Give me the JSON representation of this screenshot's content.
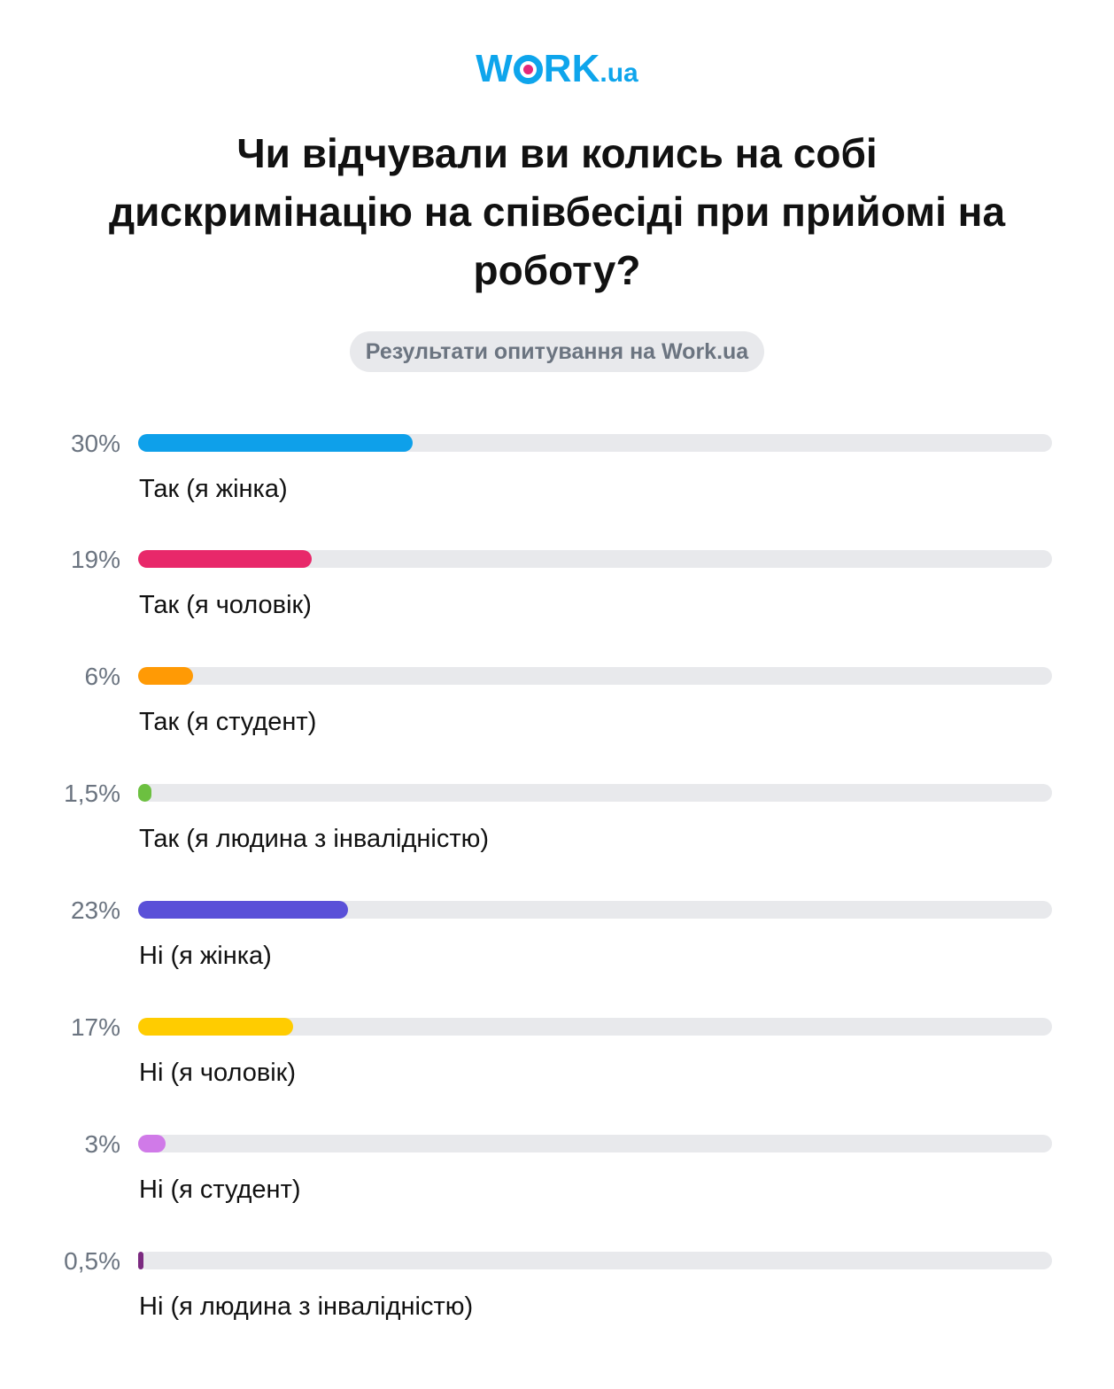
{
  "logo": {
    "main_w": "W",
    "main_rk": "RK",
    "suffix": ".ua"
  },
  "title": "Чи відчували ви колись на собі дискримінацію на співбесіді при прийомі на роботу?",
  "badge": "Результати опитування на Work.ua",
  "colors": {
    "brand": "#0ea5ec",
    "accent": "#e4287a",
    "track": "#e8e9ec"
  },
  "chart_data": {
    "type": "bar",
    "orientation": "horizontal",
    "title": "Чи відчували ви колись на собі дискримінацію на співбесіді при прийомі на роботу?",
    "subtitle": "Результати опитування на Work.ua",
    "categories": [
      "Так (я жінка)",
      "Так (я чоловік)",
      "Так (я студент)",
      "Так (я людина з інвалідністю)",
      "Ні (я жінка)",
      "Ні (я чоловік)",
      "Ні (я студент)",
      "Ні (я людина з інвалідністю)"
    ],
    "values": [
      30,
      19,
      6,
      1.5,
      23,
      17,
      3,
      0.5
    ],
    "value_labels": [
      "30%",
      "19%",
      "6%",
      "1,5%",
      "23%",
      "17%",
      "3%",
      "0,5%"
    ],
    "colors": [
      "#0ea0ea",
      "#e8286a",
      "#ff9a05",
      "#6cc040",
      "#5a50d8",
      "#ffcc00",
      "#d07ae8",
      "#7b2a80"
    ],
    "xlim": [
      0,
      100
    ],
    "xlabel": "",
    "ylabel": "",
    "grid": false,
    "legend": "none"
  },
  "rows": [
    {
      "pct": "30%",
      "label": "Так (я жінка)"
    },
    {
      "pct": "19%",
      "label": "Так (я чоловік)"
    },
    {
      "pct": "6%",
      "label": "Так (я студент)"
    },
    {
      "pct": "1,5%",
      "label": "Так (я людина з інвалідністю)"
    },
    {
      "pct": "23%",
      "label": "Ні (я жінка)"
    },
    {
      "pct": "17%",
      "label": "Ні (я чоловік)"
    },
    {
      "pct": "3%",
      "label": "Ні (я студент)"
    },
    {
      "pct": "0,5%",
      "label": "Ні (я людина з інвалідністю)"
    }
  ]
}
